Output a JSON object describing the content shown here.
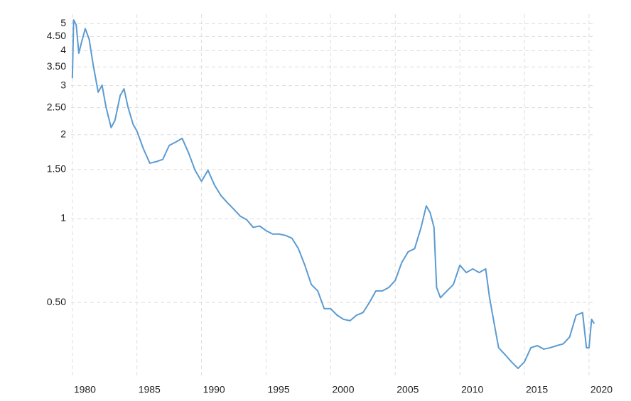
{
  "chart_data": {
    "type": "line",
    "log_y": true,
    "grid": true,
    "xlim": [
      1979.9,
      2020.5
    ],
    "ylim": [
      0.272,
      5.41
    ],
    "xticks": [
      1980,
      1985,
      1990,
      1995,
      2000,
      2005,
      2010,
      2015,
      2020
    ],
    "yticks": [
      {
        "value": 0.5,
        "label": "0.50"
      },
      1,
      {
        "value": 1.5,
        "label": "1.50"
      },
      2,
      {
        "value": 2.5,
        "label": "2.50"
      },
      3,
      {
        "value": 3.5,
        "label": "3.50"
      },
      4,
      {
        "value": 4.5,
        "label": "4.50"
      },
      5
    ],
    "x": [
      1980.0,
      1980.1,
      1980.3,
      1980.5,
      1980.7,
      1981.0,
      1981.3,
      1981.6,
      1982.0,
      1982.3,
      1982.6,
      1983.0,
      1983.3,
      1983.7,
      1984.0,
      1984.3,
      1984.7,
      1985.0,
      1985.5,
      1986.0,
      1986.5,
      1987.0,
      1987.5,
      1988.0,
      1988.5,
      1989.0,
      1989.5,
      1990.0,
      1990.5,
      1991.0,
      1991.5,
      1992.0,
      1992.5,
      1993.0,
      1993.5,
      1994.0,
      1994.5,
      1995.0,
      1995.5,
      1996.0,
      1996.5,
      1997.0,
      1997.5,
      1998.0,
      1998.5,
      1999.0,
      1999.5,
      2000.0,
      2000.5,
      2001.0,
      2001.5,
      2002.0,
      2002.5,
      2003.0,
      2003.5,
      2004.0,
      2004.5,
      2005.0,
      2005.5,
      2006.0,
      2006.5,
      2007.0,
      2007.4,
      2007.7,
      2008.0,
      2008.2,
      2008.5,
      2009.0,
      2009.5,
      2010.0,
      2010.5,
      2011.0,
      2011.5,
      2012.0,
      2012.3,
      2012.7,
      2013.0,
      2013.5,
      2014.0,
      2014.5,
      2015.0,
      2015.5,
      2016.0,
      2016.5,
      2017.0,
      2017.5,
      2018.0,
      2018.5,
      2019.0,
      2019.5,
      2019.8,
      2020.0,
      2020.2,
      2020.4
    ],
    "series": [
      {
        "color": "#5b9bd1",
        "values": [
          3.19,
          5.16,
          4.95,
          3.92,
          4.27,
          4.8,
          4.4,
          3.59,
          2.84,
          3.01,
          2.52,
          2.12,
          2.25,
          2.76,
          2.92,
          2.52,
          2.18,
          2.06,
          1.78,
          1.58,
          1.6,
          1.63,
          1.83,
          1.88,
          1.94,
          1.72,
          1.49,
          1.36,
          1.49,
          1.32,
          1.21,
          1.14,
          1.08,
          1.02,
          0.99,
          0.93,
          0.94,
          0.905,
          0.88,
          0.88,
          0.87,
          0.85,
          0.78,
          0.68,
          0.58,
          0.55,
          0.475,
          0.475,
          0.45,
          0.435,
          0.43,
          0.45,
          0.46,
          0.5,
          0.55,
          0.55,
          0.566,
          0.6,
          0.695,
          0.76,
          0.78,
          0.93,
          1.11,
          1.05,
          0.93,
          0.566,
          0.52,
          0.55,
          0.58,
          0.68,
          0.64,
          0.66,
          0.64,
          0.66,
          0.52,
          0.41,
          0.344,
          0.325,
          0.306,
          0.29,
          0.306,
          0.344,
          0.35,
          0.34,
          0.344,
          0.35,
          0.355,
          0.376,
          0.45,
          0.46,
          0.344,
          0.344,
          0.435,
          0.42
        ]
      }
    ]
  }
}
